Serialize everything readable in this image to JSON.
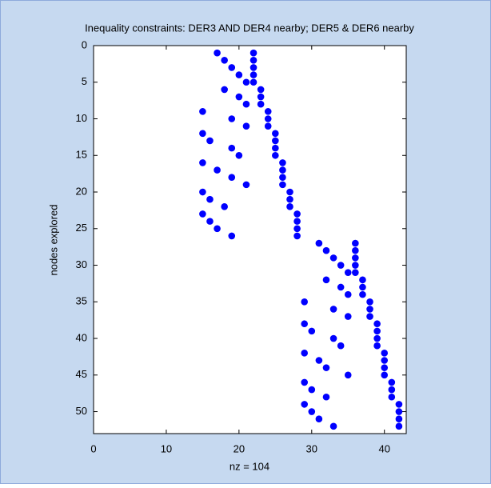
{
  "chart_data": {
    "type": "scatter",
    "title": "Inequality constraints: DER3 AND DER4 nearby; DER5 & DER6 nearby",
    "x_label": "nz = 104",
    "y_label": "nodes explored",
    "color": "#0000ff",
    "x": [
      17,
      22,
      18,
      22,
      19,
      22,
      20,
      22,
      21,
      22,
      18,
      23,
      20,
      23,
      21,
      23,
      15,
      24,
      19,
      24,
      21,
      24,
      15,
      25,
      16,
      25,
      19,
      25,
      20,
      25,
      15,
      26,
      17,
      26,
      19,
      26,
      21,
      26,
      15,
      27,
      16,
      27,
      18,
      27,
      15,
      28,
      16,
      28,
      17,
      28,
      19,
      28,
      31,
      36,
      32,
      36,
      33,
      36,
      34,
      36,
      35,
      36,
      32,
      37,
      34,
      37,
      35,
      37,
      29,
      38,
      33,
      38,
      35,
      38,
      29,
      39,
      30,
      39,
      33,
      39,
      34,
      39,
      29,
      40,
      31,
      40,
      32,
      40,
      35,
      40,
      29,
      41,
      30,
      41,
      32,
      41,
      29,
      42,
      30,
      42,
      31,
      42,
      33,
      42
    ],
    "values": [
      1,
      1,
      2,
      2,
      3,
      3,
      4,
      4,
      5,
      5,
      6,
      6,
      7,
      7,
      8,
      8,
      9,
      9,
      10,
      10,
      11,
      11,
      12,
      12,
      13,
      13,
      14,
      14,
      15,
      15,
      16,
      16,
      17,
      17,
      18,
      18,
      19,
      19,
      20,
      20,
      21,
      21,
      22,
      22,
      23,
      23,
      24,
      24,
      25,
      25,
      26,
      26,
      27,
      27,
      28,
      28,
      29,
      29,
      30,
      30,
      31,
      31,
      32,
      32,
      33,
      33,
      34,
      34,
      35,
      35,
      36,
      36,
      37,
      37,
      38,
      38,
      39,
      39,
      40,
      40,
      41,
      41,
      42,
      42,
      43,
      43,
      44,
      44,
      45,
      45,
      46,
      46,
      47,
      47,
      48,
      48,
      49,
      49,
      50,
      50,
      51,
      51,
      52,
      52
    ],
    "xlim": [
      0,
      43
    ],
    "ylim": [
      0,
      53
    ],
    "y_reversed": true,
    "xticks": [
      0,
      10,
      20,
      30,
      40
    ],
    "yticks": [
      0,
      5,
      10,
      15,
      20,
      25,
      30,
      35,
      40,
      45,
      50
    ]
  }
}
